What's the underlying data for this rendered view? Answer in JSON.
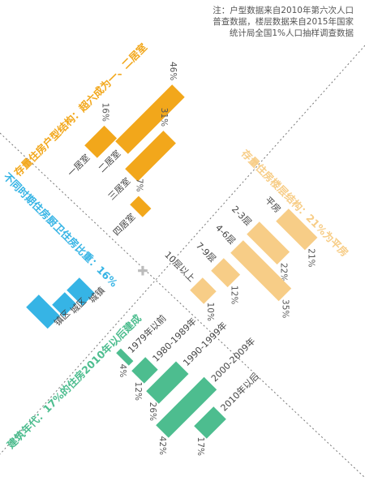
{
  "note": [
    "注：户型数据来自2010年第六次人口",
    "普查数据，楼层数据来自2015年国家",
    "统计局全国1%人口抽样调查数据"
  ],
  "center_marker": "✚",
  "chart_data": [
    {
      "type": "bar",
      "title": "存量住房户型结构：超六成为一、二居室",
      "color": "#f2a71b",
      "categories": [
        "一居室",
        "二居室",
        "三居室",
        "四居室"
      ],
      "values": [
        16,
        46,
        31,
        7
      ],
      "value_labels": [
        "16%",
        "46%",
        "31%",
        "7%"
      ]
    },
    {
      "type": "bar",
      "title": "存量住房楼层结构：21%为平房",
      "color": "#f7cd87",
      "categories": [
        "平房",
        "2-3层",
        "4-6层",
        "7-9层",
        "10层以上"
      ],
      "values": [
        21,
        22,
        35,
        12,
        10
      ],
      "value_labels": [
        "21%",
        "22%",
        "35%",
        "12%",
        "10%"
      ]
    },
    {
      "type": "bar",
      "title": "不同时期住房厨卫住房比重：16%",
      "color": "#36b4e5",
      "categories": [
        "城镇",
        "城区",
        "镇区"
      ],
      "values": [
        16,
        12,
        22
      ]
    },
    {
      "type": "bar",
      "title": "建筑年代：17%的住房2010年以后建成",
      "color": "#4dbd8f",
      "categories": [
        "1979年以前",
        "1980-1989年",
        "1990-1999年",
        "2000-2009年",
        "2010年以后"
      ],
      "values": [
        4,
        12,
        26,
        42,
        17
      ],
      "value_labels": [
        "4%",
        "12%",
        "26%",
        "42%",
        "17%"
      ]
    }
  ]
}
